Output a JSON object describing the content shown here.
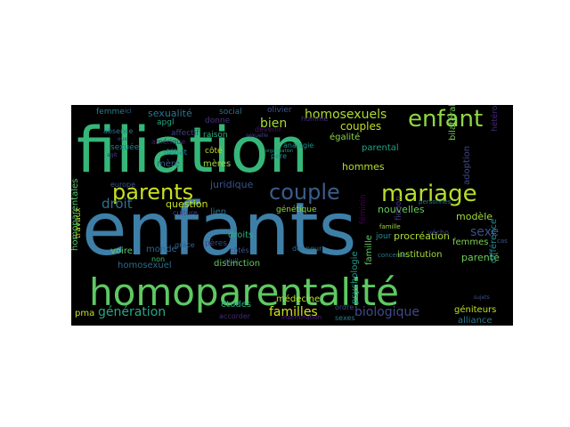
{
  "words": [
    {
      "text": "filiation",
      "color": "#35b779"
    },
    {
      "text": "enfants",
      "color": "#3e7fa8"
    },
    {
      "text": "homoparentalité",
      "color": "#5ec962"
    },
    {
      "text": "enfant",
      "color": "#90d743"
    },
    {
      "text": "mariage",
      "color": "#b5de2b"
    },
    {
      "text": "parents",
      "color": "#c8e020"
    },
    {
      "text": "couple",
      "color": "#3b5d8c"
    },
    {
      "text": "homosexuels",
      "color": "#addc30"
    },
    {
      "text": "droit",
      "color": "#2c728e"
    },
    {
      "text": "bien",
      "color": "#a8db34"
    },
    {
      "text": "sexe",
      "color": "#3d4d8a"
    },
    {
      "text": "génération",
      "color": "#26a784"
    },
    {
      "text": "familles",
      "color": "#d4e21a"
    },
    {
      "text": "biologique",
      "color": "#3e4989"
    },
    {
      "text": "sexualité",
      "color": "#2a788e"
    },
    {
      "text": "couples",
      "color": "#c2df23"
    },
    {
      "text": "procréation",
      "color": "#addc30"
    },
    {
      "text": "parenté",
      "color": "#6ece58"
    },
    {
      "text": "modèle",
      "color": "#a0da39"
    },
    {
      "text": "question",
      "color": "#c8e020"
    },
    {
      "text": "juridique",
      "color": "#3b528b"
    },
    {
      "text": "mère",
      "color": "#365c8d"
    },
    {
      "text": "mères",
      "color": "#9fda3a"
    },
    {
      "text": "hommes",
      "color": "#b5de2b"
    },
    {
      "text": "égalité",
      "color": "#86d549"
    },
    {
      "text": "nouvelles",
      "color": "#67cc5c"
    },
    {
      "text": "parental",
      "color": "#1fa187"
    },
    {
      "text": "homosexuel",
      "color": "#306a8e"
    },
    {
      "text": "distinction",
      "color": "#63cb5f"
    },
    {
      "text": "médecine",
      "color": "#bddf26"
    },
    {
      "text": "études",
      "color": "#22a785"
    },
    {
      "text": "géniteurs",
      "color": "#c0df25"
    },
    {
      "text": "alliance",
      "color": "#2a768e"
    },
    {
      "text": "lien",
      "color": "#2c718e"
    },
    {
      "text": "monde",
      "color": "#33638d"
    },
    {
      "text": "droits",
      "color": "#2ab07f"
    },
    {
      "text": "voire",
      "color": "#5ac864"
    },
    {
      "text": "pères",
      "color": "#414487"
    },
    {
      "text": "génétique",
      "color": "#8fd744"
    },
    {
      "text": "sexuée",
      "color": "#287c8e"
    },
    {
      "text": "femme",
      "color": "#277f8e"
    },
    {
      "text": "social",
      "color": "#2d718e"
    },
    {
      "text": "olivier",
      "color": "#3b528b"
    },
    {
      "text": "affectif",
      "color": "#433e85"
    },
    {
      "text": "raison",
      "color": "#29af7f"
    },
    {
      "text": "débat",
      "color": "#23898e"
    },
    {
      "text": "donne",
      "color": "#46337f"
    },
    {
      "text": "apgl",
      "color": "#22a884"
    },
    {
      "text": "côté",
      "color": "#bddf26"
    },
    {
      "text": "europe",
      "color": "#3a548c"
    },
    {
      "text": "culture",
      "color": "#3f4788"
    },
    {
      "text": "grâce",
      "color": "#34618d"
    },
    {
      "text": "non",
      "color": "#40bd72"
    },
    {
      "text": "civil",
      "color": "#3b518b"
    },
    {
      "text": "côtés",
      "color": "#3d4e8a"
    },
    {
      "text": "homme",
      "color": "#472d7b"
    },
    {
      "text": "devenir",
      "color": "#481769"
    },
    {
      "text": "analogie",
      "color": "#20928c"
    },
    {
      "text": "absence",
      "color": "#2c728e"
    },
    {
      "text": "amérique",
      "color": "#481c6e"
    },
    {
      "text": "institution",
      "color": "#a5db36"
    },
    {
      "text": "femmes",
      "color": "#7ad151"
    },
    {
      "text": "jour",
      "color": "#218f8d"
    },
    {
      "text": "pma",
      "color": "#c8e020"
    },
    {
      "text": "sexes",
      "color": "#297b8e"
    },
    {
      "text": "ordre",
      "color": "#3e4989"
    },
    {
      "text": "accorder",
      "color": "#472a7a"
    },
    {
      "text": "insémination",
      "color": "#482173"
    },
    {
      "text": "donneur",
      "color": "#2c728e"
    },
    {
      "text": "psychologie",
      "color": "#1f988b"
    },
    {
      "text": "famille",
      "color": "#5ec962"
    },
    {
      "text": "concerne",
      "color": "#2a778e"
    },
    {
      "text": "vécho",
      "color": "#414487"
    },
    {
      "text": "adoption",
      "color": "#3f4889"
    },
    {
      "text": "différence",
      "color": "#23888e"
    },
    {
      "text": "bilatéralité",
      "color": "#75d054"
    },
    {
      "text": "personnes",
      "color": "#2b748e"
    },
    {
      "text": "fiction",
      "color": "#453781"
    },
    {
      "text": "féminin",
      "color": "#440154"
    },
    {
      "text": "cas",
      "color": "#3b528b"
    },
    {
      "text": "hétérosexuels",
      "color": "#482979"
    },
    {
      "text": "travaux",
      "color": "#bade28"
    },
    {
      "text": "homoparentales",
      "color": "#56c667"
    },
    {
      "text": "ici",
      "color": "#2d708e"
    },
    {
      "text": "famille",
      "color": "#9dd93b"
    },
    {
      "text": "père",
      "color": "#24868e"
    },
    {
      "text": "sexuelle",
      "color": "#404588"
    },
    {
      "text": "organisation",
      "color": "#1e9c89"
    },
    {
      "text": "eux",
      "color": "#404688"
    },
    {
      "text": "agit",
      "color": "#414287"
    },
    {
      "text": "sujets",
      "color": "#3b528b"
    }
  ]
}
